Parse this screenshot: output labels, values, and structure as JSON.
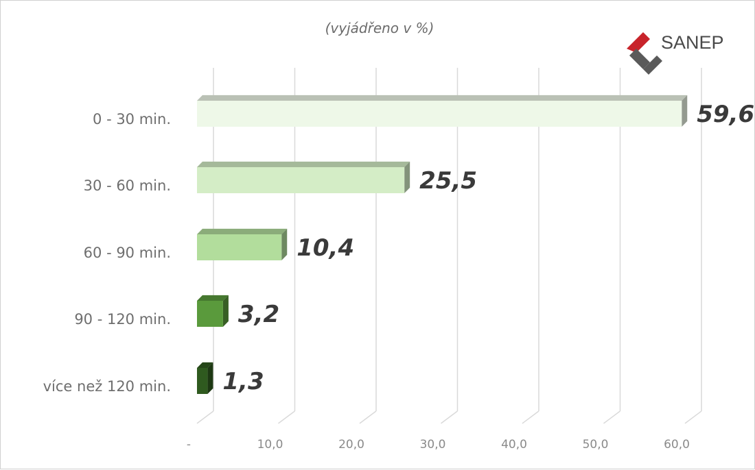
{
  "logo": {
    "text": "SANEP",
    "colors": {
      "red": "#c8242b",
      "gray": "#5a5a5a"
    }
  },
  "chart_data": {
    "type": "bar",
    "orientation": "horizontal",
    "style": "3d",
    "subtitle": "(vyjádřeno v %)",
    "categories": [
      "0 - 30 min.",
      "30 - 60 min.",
      "60 - 90 min.",
      "90 - 120 min.",
      "více než 120 min."
    ],
    "values": [
      59.6,
      25.5,
      10.4,
      3.2,
      1.3
    ],
    "value_labels": [
      "59,6",
      "25,5",
      "10,4",
      "3,2",
      "1,3"
    ],
    "xlim": [
      0,
      60
    ],
    "x_ticks": [
      "-",
      "10,0",
      "20,0",
      "30,0",
      "40,0",
      "50,0",
      "60,0"
    ],
    "grid": true,
    "legend": "none",
    "bar_colors": [
      "#eef8e8",
      "#d4edc6",
      "#b2dd9c",
      "#5a9a3c",
      "#2f5a1f"
    ]
  }
}
